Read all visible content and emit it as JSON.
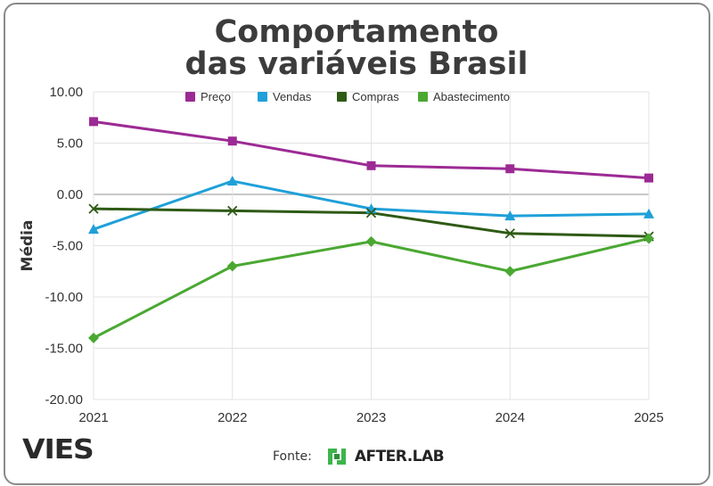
{
  "title": {
    "line1": "Comportamento",
    "line2": "das variáveis Brasil"
  },
  "chart_data": {
    "type": "line",
    "title": "Comportamento das variáveis Brasil",
    "xlabel": "",
    "ylabel": "Média",
    "categories": [
      "2021",
      "2022",
      "2023",
      "2024",
      "2025"
    ],
    "ylim": [
      -20,
      10
    ],
    "yticks": [
      10,
      5,
      0,
      -5,
      -10,
      -15,
      -20
    ],
    "ytick_labels": [
      "10.00",
      "5.00",
      "0.00",
      "-5.00",
      "-10.00",
      "-15.00",
      "-20.00"
    ],
    "grid": true,
    "legend_position": "top",
    "series": [
      {
        "name": "Preço",
        "color": "#9c2a94",
        "marker": "square",
        "values": [
          7.1,
          5.2,
          2.8,
          2.5,
          1.6
        ]
      },
      {
        "name": "Vendas",
        "color": "#1fa0d8",
        "marker": "triangle",
        "values": [
          -3.4,
          1.3,
          -1.4,
          -2.1,
          -1.9
        ]
      },
      {
        "name": "Compras",
        "color": "#2e5a15",
        "marker": "x",
        "values": [
          -1.4,
          -1.6,
          -1.8,
          -3.8,
          -4.1
        ]
      },
      {
        "name": "Abastecimento",
        "color": "#4aa832",
        "marker": "diamond",
        "values": [
          -14.0,
          -7.0,
          -4.6,
          -7.5,
          -4.3
        ]
      }
    ]
  },
  "footer": {
    "brand": "VIES",
    "source_label": "Fonte:",
    "source_logo_text": "AFTER.LAB",
    "source_logo_color": "#3db54a"
  }
}
